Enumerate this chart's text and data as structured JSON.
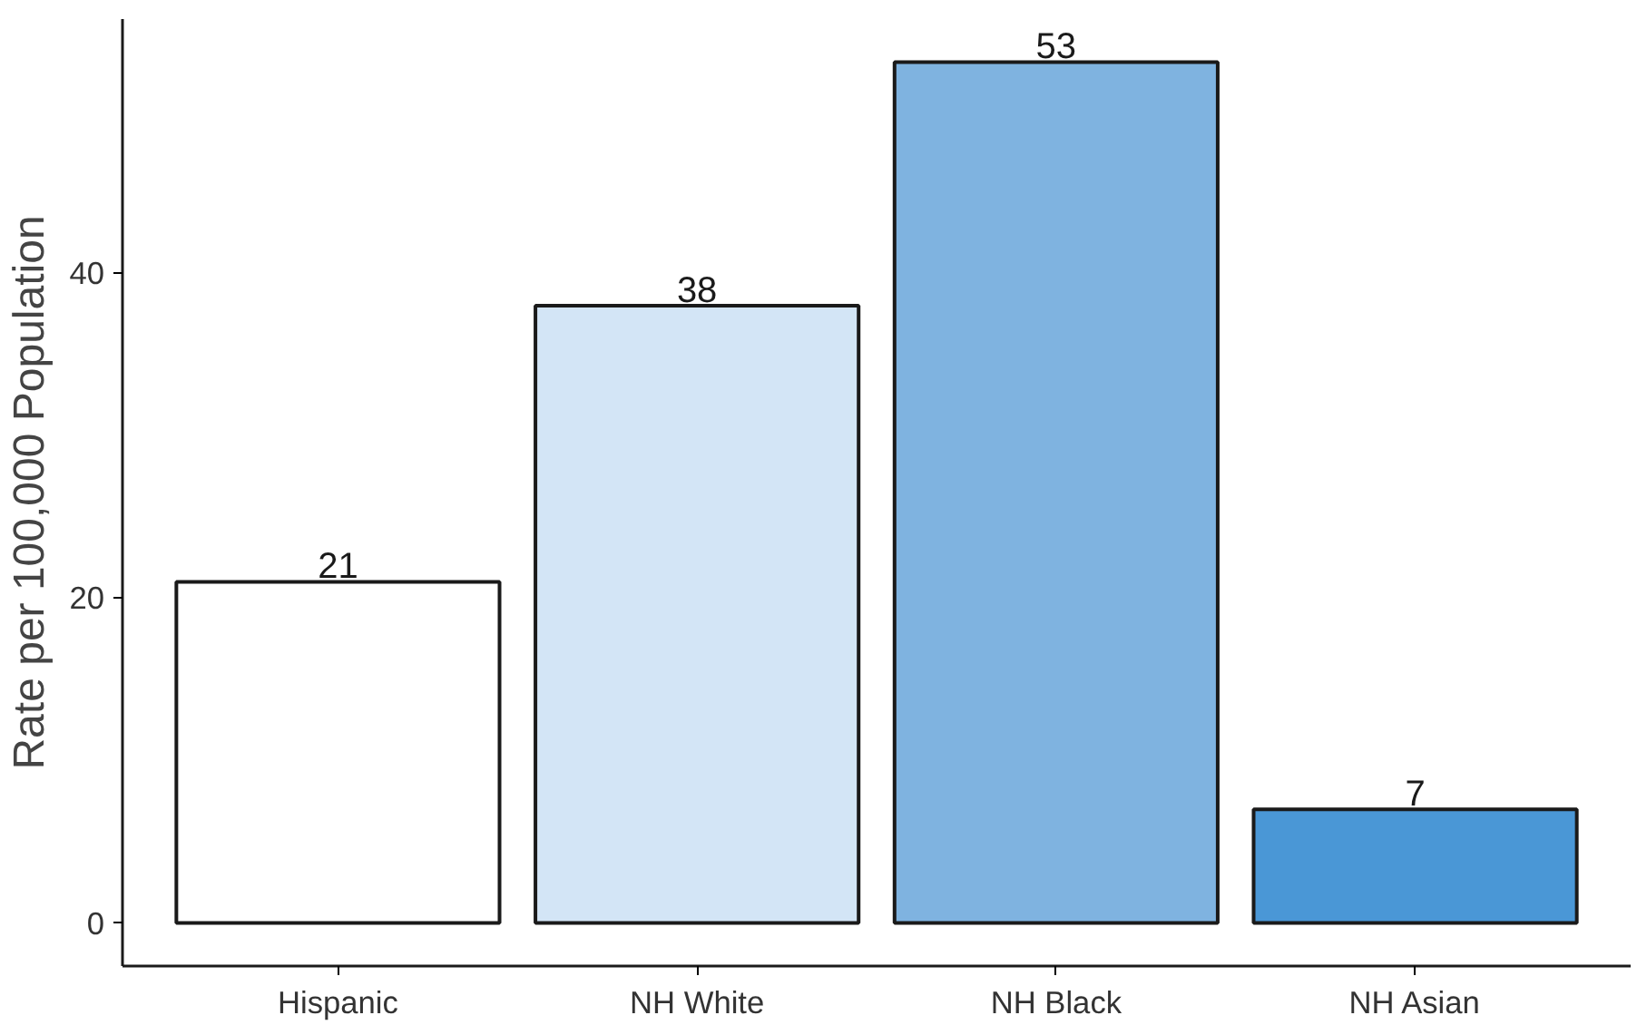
{
  "chart_data": {
    "type": "bar",
    "ylabel": "Rate per 100,000 Population",
    "categories": [
      "Hispanic",
      "NH White",
      "NH Black",
      "NH Asian"
    ],
    "values": [
      21,
      38,
      53,
      7
    ],
    "colors": [
      "#ffffff",
      "#d3e5f6",
      "#7fb3e0",
      "#4a97d6"
    ],
    "ylim": [
      -2.65,
      55.65
    ],
    "yticks": [
      0,
      20,
      40
    ],
    "data_labels": true
  }
}
